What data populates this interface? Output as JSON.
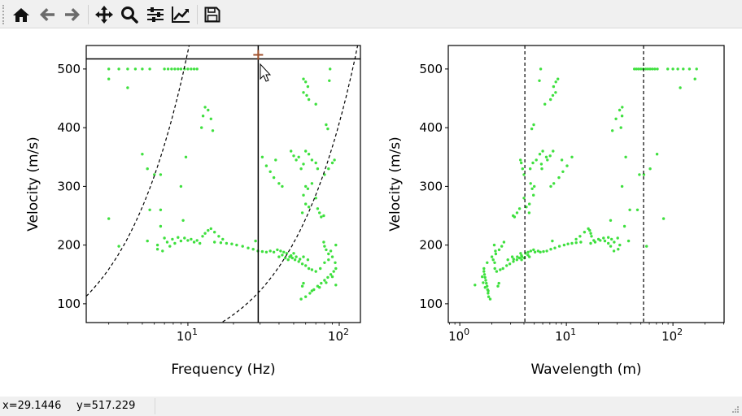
{
  "toolbar": {
    "buttons": [
      {
        "name": "home-button",
        "icon": "home-icon"
      },
      {
        "name": "back-button",
        "icon": "arrow-left-icon"
      },
      {
        "name": "forward-button",
        "icon": "arrow-right-icon"
      },
      {
        "name": "pan-button",
        "icon": "move-icon"
      },
      {
        "name": "zoom-button",
        "icon": "magnifier-icon"
      },
      {
        "name": "configure-subplots-button",
        "icon": "sliders-icon"
      },
      {
        "name": "edit-axes-button",
        "icon": "line-chart-icon"
      },
      {
        "name": "save-button",
        "icon": "floppy-disk-icon"
      }
    ]
  },
  "status": {
    "x": "x=29.1446",
    "y": "y=517.229"
  },
  "cursor": {
    "frequency": 29.1446,
    "velocity": 517.229
  },
  "colors": {
    "points": "#3fe03f",
    "marker": "#a0522d"
  },
  "chart_data": [
    {
      "type": "scatter",
      "title": "",
      "xlabel": "Frequency (Hz)",
      "ylabel": "Velocity (m/s)",
      "xscale": "log",
      "xlim": [
        2.13,
        138
      ],
      "ylim": [
        68,
        540
      ],
      "xticks": [
        {
          "value": 10,
          "base": "10",
          "exp": "1"
        },
        {
          "value": 100,
          "base": "10",
          "exp": "2"
        }
      ],
      "yticks": [
        100,
        200,
        300,
        400,
        500
      ],
      "dashed_curves_wavelength_m": [
        4.08,
        53
      ],
      "x_field": "f"
    },
    {
      "type": "scatter",
      "title": "",
      "xlabel": "Wavelength (m)",
      "ylabel": "Velocity (m/s)",
      "xscale": "log",
      "xlim": [
        0.78,
        302
      ],
      "ylim": [
        68,
        540
      ],
      "xticks": [
        {
          "value": 1,
          "base": "10",
          "exp": "0"
        },
        {
          "value": 10,
          "base": "10",
          "exp": "1"
        },
        {
          "value": 100,
          "base": "10",
          "exp": "2"
        }
      ],
      "yticks": [
        100,
        200,
        300,
        400,
        500
      ],
      "dashed_vlines_wavelength_m": [
        4.08,
        53
      ],
      "x_field": "wavelength"
    }
  ],
  "points_f_v": [
    [
      3,
      500
    ],
    [
      3.5,
      500
    ],
    [
      4,
      500
    ],
    [
      4.5,
      500
    ],
    [
      5,
      500
    ],
    [
      5.6,
      500
    ],
    [
      7,
      500
    ],
    [
      7.4,
      500
    ],
    [
      7.8,
      500
    ],
    [
      8.2,
      500
    ],
    [
      8.6,
      500
    ],
    [
      9,
      500
    ],
    [
      9.5,
      500
    ],
    [
      10,
      500
    ],
    [
      10.5,
      500
    ],
    [
      11,
      500
    ],
    [
      11.5,
      500
    ],
    [
      3,
      483
    ],
    [
      4,
      468
    ],
    [
      13,
      435
    ],
    [
      13.6,
      430
    ],
    [
      12.6,
      420
    ],
    [
      14.2,
      415
    ],
    [
      12.3,
      400
    ],
    [
      14.6,
      395
    ],
    [
      5,
      355
    ],
    [
      5.4,
      330
    ],
    [
      6,
      320
    ],
    [
      6.6,
      320
    ],
    [
      9.7,
      350
    ],
    [
      9,
      300
    ],
    [
      6.6,
      260
    ],
    [
      5.6,
      260
    ],
    [
      3,
      245
    ],
    [
      6.6,
      232
    ],
    [
      9.3,
      242
    ],
    [
      3.5,
      198
    ],
    [
      5.4,
      207
    ],
    [
      6.3,
      200
    ],
    [
      6.3,
      193
    ],
    [
      6.8,
      190
    ],
    [
      7,
      212
    ],
    [
      7.3,
      205
    ],
    [
      7.6,
      198
    ],
    [
      7.9,
      210
    ],
    [
      8.2,
      203
    ],
    [
      8.6,
      213
    ],
    [
      9,
      207
    ],
    [
      9.5,
      212
    ],
    [
      10,
      208
    ],
    [
      10.5,
      210
    ],
    [
      11,
      205
    ],
    [
      11.5,
      208
    ],
    [
      12,
      203
    ],
    [
      12.5,
      215
    ],
    [
      13,
      220
    ],
    [
      13.6,
      225
    ],
    [
      14.2,
      228
    ],
    [
      15,
      222
    ],
    [
      16,
      215
    ],
    [
      17,
      210
    ],
    [
      15,
      205
    ],
    [
      16.5,
      204
    ],
    [
      18,
      203
    ],
    [
      19.5,
      202
    ],
    [
      21,
      200
    ],
    [
      23,
      198
    ],
    [
      25,
      195
    ],
    [
      27,
      193
    ],
    [
      29,
      190
    ],
    [
      28,
      207
    ],
    [
      31,
      189
    ],
    [
      33,
      188
    ],
    [
      35,
      190
    ],
    [
      37,
      188
    ],
    [
      39,
      192
    ],
    [
      41,
      190
    ],
    [
      43,
      188
    ],
    [
      45,
      186
    ],
    [
      47,
      180
    ],
    [
      49,
      178
    ],
    [
      51,
      175
    ],
    [
      54,
      172
    ],
    [
      57,
      168
    ],
    [
      60,
      165
    ],
    [
      63,
      160
    ],
    [
      66,
      158
    ],
    [
      70,
      155
    ],
    [
      75,
      160
    ],
    [
      80,
      170
    ],
    [
      85,
      175
    ],
    [
      90,
      180
    ],
    [
      40,
      180
    ],
    [
      42,
      183
    ],
    [
      44,
      178
    ],
    [
      46,
      175
    ],
    [
      48,
      182
    ],
    [
      50,
      186
    ],
    [
      52,
      180
    ],
    [
      55,
      176
    ],
    [
      58,
      180
    ],
    [
      56,
      108
    ],
    [
      60,
      112
    ],
    [
      64,
      118
    ],
    [
      68,
      124
    ],
    [
      72,
      130
    ],
    [
      76,
      135
    ],
    [
      80,
      140
    ],
    [
      84,
      145
    ],
    [
      88,
      150
    ],
    [
      92,
      155
    ],
    [
      95,
      160
    ],
    [
      66,
      122
    ],
    [
      74,
      128
    ],
    [
      82,
      136
    ],
    [
      90,
      146
    ],
    [
      95,
      132
    ],
    [
      57,
      130
    ],
    [
      58,
      135
    ],
    [
      79,
      205
    ],
    [
      80,
      198
    ],
    [
      82,
      192
    ],
    [
      85,
      185
    ],
    [
      88,
      190
    ],
    [
      94,
      170
    ],
    [
      95,
      200
    ],
    [
      62,
      175
    ],
    [
      57,
      255
    ],
    [
      60,
      270
    ],
    [
      63,
      265
    ],
    [
      58,
      285
    ],
    [
      60,
      300
    ],
    [
      62,
      296
    ],
    [
      66,
      305
    ],
    [
      70,
      280
    ],
    [
      74,
      255
    ],
    [
      76,
      248
    ],
    [
      79,
      250
    ],
    [
      72,
      262
    ],
    [
      31,
      350
    ],
    [
      33,
      335
    ],
    [
      35,
      325
    ],
    [
      37,
      315
    ],
    [
      40,
      305
    ],
    [
      42,
      300
    ],
    [
      38,
      345
    ],
    [
      48,
      360
    ],
    [
      50,
      352
    ],
    [
      52,
      345
    ],
    [
      54,
      350
    ],
    [
      56,
      330
    ],
    [
      58,
      338
    ],
    [
      60,
      360
    ],
    [
      63,
      355
    ],
    [
      66,
      345
    ],
    [
      70,
      340
    ],
    [
      72,
      330
    ],
    [
      80,
      320
    ],
    [
      85,
      330
    ],
    [
      90,
      340
    ],
    [
      93,
      345
    ],
    [
      58,
      483
    ],
    [
      60,
      478
    ],
    [
      62,
      470
    ],
    [
      58,
      460
    ],
    [
      61,
      455
    ],
    [
      63,
      448
    ],
    [
      70,
      440
    ],
    [
      82,
      405
    ],
    [
      84,
      398
    ],
    [
      87,
      500
    ],
    [
      86,
      480
    ]
  ]
}
